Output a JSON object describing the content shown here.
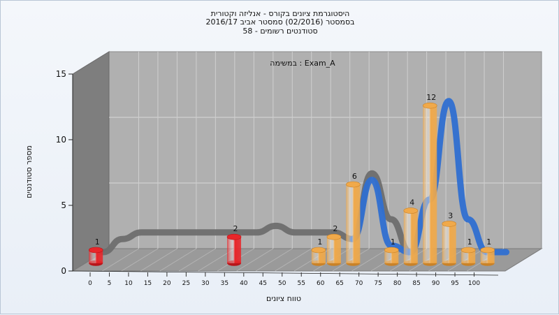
{
  "chart_data": {
    "type": "bar",
    "title_lines": [
      "היסטוגרמת ציונים בקורס - אנליזה וקטורית",
      "בסמסטר  (02/2016)  סמסטר אביב 2016/17",
      "סטודנטים רשומים - 58"
    ],
    "annotation": "במשימה : Exam_A",
    "xlabel": "טווח ציונים",
    "ylabel": "מספר סטודנטים",
    "ylim": [
      0,
      15
    ],
    "yticks": [
      "0",
      "5",
      "10",
      "15"
    ],
    "xticks": [
      "0",
      "5",
      "10",
      "15",
      "20",
      "25",
      "30",
      "35",
      "40",
      "45",
      "50",
      "55",
      "60",
      "65",
      "70",
      "75",
      "80",
      "85",
      "90",
      "95",
      "100"
    ],
    "bars": [
      {
        "x": 0,
        "value": 1,
        "label": "1",
        "color": "#e8262a"
      },
      {
        "x": 36,
        "value": 2,
        "label": "2",
        "color": "#e8262a"
      },
      {
        "x": 58,
        "value": 1,
        "label": "1",
        "color": "#f0a94a"
      },
      {
        "x": 62,
        "value": 2,
        "label": "2",
        "color": "#f0a94a"
      },
      {
        "x": 67,
        "value": 6,
        "label": "6",
        "color": "#f0a94a"
      },
      {
        "x": 77,
        "value": 1,
        "label": "1",
        "color": "#f0a94a"
      },
      {
        "x": 82,
        "value": 4,
        "label": "4",
        "color": "#f0a94a"
      },
      {
        "x": 87,
        "value": 12,
        "label": "12",
        "color": "#f0a94a"
      },
      {
        "x": 92,
        "value": 3,
        "label": "3",
        "color": "#f0a94a"
      },
      {
        "x": 97,
        "value": 1,
        "label": "1",
        "color": "#f0a94a"
      },
      {
        "x": 102,
        "value": 1,
        "label": "1",
        "color": "#f0a94a"
      }
    ],
    "curve_gray": {
      "x": [
        0,
        5,
        10,
        20,
        30,
        35,
        40,
        45,
        50,
        55,
        60,
        65
      ],
      "y": [
        0.5,
        1.5,
        2,
        2,
        2,
        2,
        2,
        2.5,
        2,
        2,
        2,
        1.5
      ]
    },
    "curve_blue": {
      "x": [
        65,
        70,
        75,
        80,
        85,
        90,
        95,
        100,
        105
      ],
      "y": [
        1.5,
        6,
        1,
        0.5,
        4.5,
        12,
        3,
        0.5,
        0.5
      ]
    },
    "curve_gray_tail": {
      "x": [
        65,
        70,
        75,
        80
      ],
      "y": [
        1.5,
        6.5,
        3,
        0.5
      ]
    },
    "colors": {
      "wall": "#b0b0b0",
      "floor": "#9a9a9a",
      "side": "#7e7e7e",
      "gray_curve": "#6e6e6e",
      "blue_curve": "#2f6fd1"
    }
  }
}
